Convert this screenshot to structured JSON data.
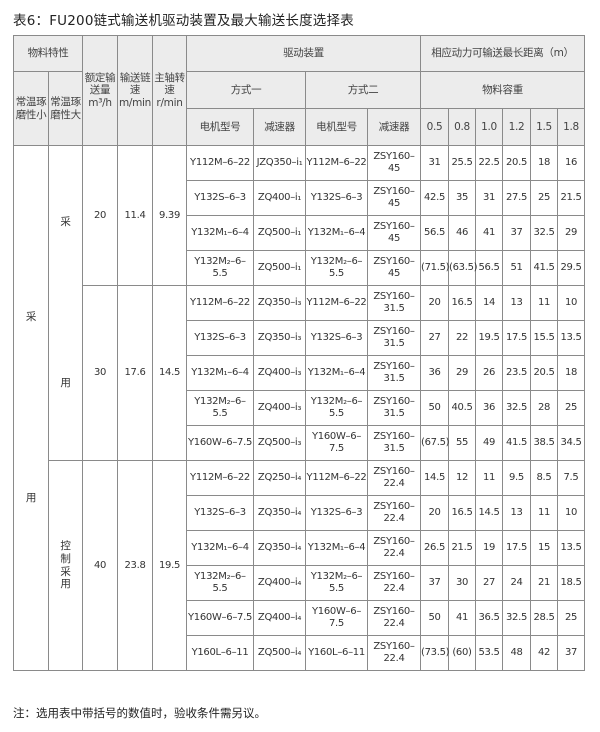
{
  "title": "表6：FU200链式输送机驱动装置及最大输送长度选择表",
  "header": {
    "material_props": "物料特性",
    "low_abrasion": "常温琢磨性小",
    "high_abrasion": "常温琢磨性大",
    "capacity": "额定输送量m³/h",
    "chain_speed": "输送链速m/min",
    "shaft_speed": "主轴转速r/min",
    "drive": "驱动装置",
    "mode1": "方式一",
    "mode2": "方式二",
    "motor": "电机型号",
    "reducer": "减速器",
    "max_distance": "相应动力可输送最长距离（m）",
    "bulk_density": "物料容重",
    "densities": [
      "0.5",
      "0.8",
      "1.0",
      "1.2",
      "1.5",
      "1.8"
    ]
  },
  "col1_label": [
    "采",
    "用"
  ],
  "col2_labels": {
    "top": [
      "采",
      "用"
    ],
    "bottom": [
      "控",
      "制",
      "采",
      "用"
    ]
  },
  "groups": [
    {
      "capacity": "20",
      "chain_speed": "11.4",
      "shaft_speed": "9.39",
      "rows": [
        {
          "m1": "Y112M–6–22",
          "r1": "JZQ350–i₁",
          "m2": "Y112M–6–22",
          "r2": "ZSY160–45",
          "d": [
            "31",
            "25.5",
            "22.5",
            "20.5",
            "18",
            "16"
          ]
        },
        {
          "m1": "Y132S–6–3",
          "r1": "ZQ400–i₁",
          "m2": "Y132S–6–3",
          "r2": "ZSY160–45",
          "d": [
            "42.5",
            "35",
            "31",
            "27.5",
            "25",
            "21.5"
          ]
        },
        {
          "m1": "Y132M₁–6–4",
          "r1": "ZQ500–i₁",
          "m2": "Y132M₁–6–4",
          "r2": "ZSY160–45",
          "d": [
            "56.5",
            "46",
            "41",
            "37",
            "32.5",
            "29"
          ]
        },
        {
          "m1": "Y132M₂–6–5.5",
          "r1": "ZQ500–i₁",
          "m2": "Y132M₂–6–5.5",
          "r2": "ZSY160–45",
          "d": [
            "(71.5)",
            "(63.5)",
            "56.5",
            "51",
            "41.5",
            "29.5"
          ]
        }
      ]
    },
    {
      "capacity": "30",
      "chain_speed": "17.6",
      "shaft_speed": "14.5",
      "rows": [
        {
          "m1": "Y112M–6–22",
          "r1": "ZQ350–i₃",
          "m2": "Y112M–6–22",
          "r2": "ZSY160–31.5",
          "d": [
            "20",
            "16.5",
            "14",
            "13",
            "11",
            "10"
          ]
        },
        {
          "m1": "Y132S–6–3",
          "r1": "ZQ350–i₃",
          "m2": "Y132S–6–3",
          "r2": "ZSY160–31.5",
          "d": [
            "27",
            "22",
            "19.5",
            "17.5",
            "15.5",
            "13.5"
          ]
        },
        {
          "m1": "Y132M₁–6–4",
          "r1": "ZQ400–i₃",
          "m2": "Y132M₁–6–4",
          "r2": "ZSY160–31.5",
          "d": [
            "36",
            "29",
            "26",
            "23.5",
            "20.5",
            "18"
          ]
        },
        {
          "m1": "Y132M₂–6–5.5",
          "r1": "ZQ400–i₃",
          "m2": "Y132M₂–6–5.5",
          "r2": "ZSY160–31.5",
          "d": [
            "50",
            "40.5",
            "36",
            "32.5",
            "28",
            "25"
          ]
        },
        {
          "m1": "Y160W–6–7.5",
          "r1": "ZQ500–i₃",
          "m2": "Y160W–6–7.5",
          "r2": "ZSY160–31.5",
          "d": [
            "(67.5)",
            "55",
            "49",
            "41.5",
            "38.5",
            "34.5"
          ]
        }
      ]
    },
    {
      "capacity": "40",
      "chain_speed": "23.8",
      "shaft_speed": "19.5",
      "rows": [
        {
          "m1": "Y112M–6–22",
          "r1": "ZQ250–i₄",
          "m2": "Y112M–6–22",
          "r2": "ZSY160–22.4",
          "d": [
            "14.5",
            "12",
            "11",
            "9.5",
            "8.5",
            "7.5"
          ]
        },
        {
          "m1": "Y132S–6–3",
          "r1": "ZQ350–i₄",
          "m2": "Y132S–6–3",
          "r2": "ZSY160–22.4",
          "d": [
            "20",
            "16.5",
            "14.5",
            "13",
            "11",
            "10"
          ]
        },
        {
          "m1": "Y132M₁–6–4",
          "r1": "ZQ350–i₄",
          "m2": "Y132M₁–6–4",
          "r2": "ZSY160–22.4",
          "d": [
            "26.5",
            "21.5",
            "19",
            "17.5",
            "15",
            "13.5"
          ]
        },
        {
          "m1": "Y132M₂–6–5.5",
          "r1": "ZQ400–i₄",
          "m2": "Y132M₂–6–5.5",
          "r2": "ZSY160–22.4",
          "d": [
            "37",
            "30",
            "27",
            "24",
            "21",
            "18.5"
          ]
        },
        {
          "m1": "Y160W–6–7.5",
          "r1": "ZQ400–i₄",
          "m2": "Y160W–6–7.5",
          "r2": "ZSY160–22.4",
          "d": [
            "50",
            "41",
            "36.5",
            "32.5",
            "28.5",
            "25"
          ]
        },
        {
          "m1": "Y160L–6–11",
          "r1": "ZQ500–i₄",
          "m2": "Y160L–6–11",
          "r2": "ZSY160–22.4",
          "d": [
            "(73.5)",
            "(60)",
            "53.5",
            "48",
            "42",
            "37"
          ]
        }
      ]
    }
  ],
  "note": "注：选用表中带括号的数值时，验收条件需另议。"
}
